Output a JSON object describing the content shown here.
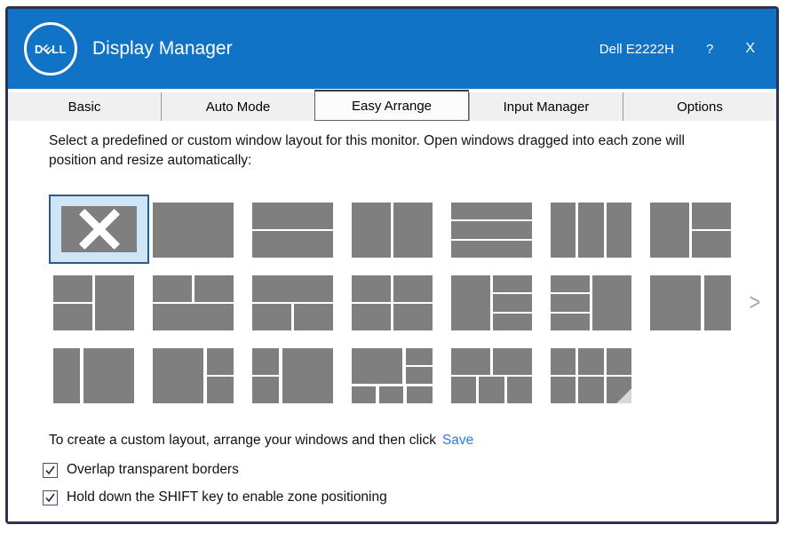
{
  "header": {
    "logo": "DELL",
    "title": "Display Manager",
    "monitor": "Dell E2222H",
    "help": "?",
    "close": "X"
  },
  "tabs": [
    {
      "label": "Basic",
      "selected": false
    },
    {
      "label": "Auto Mode",
      "selected": false
    },
    {
      "label": "Easy Arrange",
      "selected": true
    },
    {
      "label": "Input Manager",
      "selected": false
    },
    {
      "label": "Options",
      "selected": false
    }
  ],
  "easy_arrange": {
    "instruction_line1": "Select a predefined or custom window layout for this monitor.  Open windows dragged into each zone will",
    "instruction_line2": "position and resize automatically:",
    "next_arrow": ">",
    "hint_text": "To create a custom layout, arrange your windows and then click",
    "save_link": "Save",
    "checkboxes": [
      {
        "label": "Overlap transparent borders",
        "checked": true
      },
      {
        "label": "Hold down the SHIFT key to enable zone positioning",
        "checked": true
      }
    ],
    "layout_rows": [
      [
        {
          "name": "custom-current",
          "selected": true,
          "glyph": "X",
          "zones": [
            [
              0,
              0,
              100,
              100
            ]
          ]
        },
        {
          "name": "single-full",
          "zones": [
            [
              0,
              0,
              100,
              100
            ]
          ]
        },
        {
          "name": "two-rows",
          "zones": [
            [
              0,
              0,
              100,
              48.5
            ],
            [
              0,
              51.5,
              100,
              48.5
            ]
          ]
        },
        {
          "name": "two-cols",
          "zones": [
            [
              0,
              0,
              48.5,
              100
            ],
            [
              51.5,
              0,
              48.5,
              100
            ]
          ]
        },
        {
          "name": "three-rows",
          "zones": [
            [
              0,
              0,
              100,
              31
            ],
            [
              0,
              34.5,
              100,
              31
            ],
            [
              0,
              69,
              100,
              31
            ]
          ]
        },
        {
          "name": "three-cols",
          "zones": [
            [
              0,
              0,
              31,
              100
            ],
            [
              34.5,
              0,
              31,
              100
            ],
            [
              69,
              0,
              31,
              100
            ]
          ]
        },
        {
          "name": "half-left-right-stack",
          "zones": [
            [
              0,
              0,
              48.5,
              100
            ],
            [
              51.5,
              0,
              48.5,
              48.5
            ],
            [
              51.5,
              51.5,
              48.5,
              48.5
            ]
          ]
        }
      ],
      [
        {
          "name": "left-stack-half-right",
          "zones": [
            [
              0,
              0,
              48.5,
              48.5
            ],
            [
              0,
              51.5,
              48.5,
              48.5
            ],
            [
              51.5,
              0,
              48.5,
              100
            ]
          ]
        },
        {
          "name": "top-split-bottom-full",
          "zones": [
            [
              0,
              0,
              48.5,
              48.5
            ],
            [
              51.5,
              0,
              48.5,
              48.5
            ],
            [
              0,
              51.5,
              100,
              48.5
            ]
          ]
        },
        {
          "name": "top-full-bottom-split",
          "zones": [
            [
              0,
              0,
              100,
              48.5
            ],
            [
              0,
              51.5,
              48.5,
              48.5
            ],
            [
              51.5,
              51.5,
              48.5,
              48.5
            ]
          ]
        },
        {
          "name": "quad-grid",
          "zones": [
            [
              0,
              0,
              48.5,
              48.5
            ],
            [
              51.5,
              0,
              48.5,
              48.5
            ],
            [
              0,
              51.5,
              48.5,
              48.5
            ],
            [
              51.5,
              51.5,
              48.5,
              48.5
            ]
          ]
        },
        {
          "name": "half-left-right-thirds",
          "zones": [
            [
              0,
              0,
              48.5,
              100
            ],
            [
              51.5,
              0,
              48.5,
              31
            ],
            [
              51.5,
              34.5,
              48.5,
              31
            ],
            [
              51.5,
              69,
              48.5,
              31
            ]
          ]
        },
        {
          "name": "left-thirds-half-right",
          "zones": [
            [
              0,
              0,
              48.5,
              31
            ],
            [
              0,
              34.5,
              48.5,
              31
            ],
            [
              0,
              69,
              48.5,
              31
            ],
            [
              51.5,
              0,
              48.5,
              100
            ]
          ]
        },
        {
          "name": "wide-left-narrow-right",
          "zones": [
            [
              0,
              0,
              63,
              100
            ],
            [
              66.5,
              0,
              33.5,
              100
            ]
          ]
        }
      ],
      [
        {
          "name": "narrow-left-wide-right",
          "zones": [
            [
              0,
              0,
              33.5,
              100
            ],
            [
              37,
              0,
              63,
              100
            ]
          ]
        },
        {
          "name": "wide-left-right-stack",
          "zones": [
            [
              0,
              0,
              63,
              100
            ],
            [
              66.5,
              0,
              33.5,
              48.5
            ],
            [
              66.5,
              51.5,
              33.5,
              48.5
            ]
          ]
        },
        {
          "name": "left-stack-wide-right",
          "zones": [
            [
              0,
              0,
              33.5,
              48.5
            ],
            [
              0,
              51.5,
              33.5,
              48.5
            ],
            [
              37,
              0,
              63,
              100
            ]
          ]
        },
        {
          "name": "big-topleft-six-zone",
          "zones": [
            [
              0,
              0,
              63,
              65
            ],
            [
              67,
              0,
              33,
              30
            ],
            [
              67,
              34,
              33,
              31
            ],
            [
              0,
              69,
              30,
              31
            ],
            [
              34,
              69,
              30,
              31
            ],
            [
              68,
              69,
              32,
              31
            ]
          ]
        },
        {
          "name": "two-top-three-bottom",
          "zones": [
            [
              0,
              0,
              48.5,
              48.5
            ],
            [
              51.5,
              0,
              48.5,
              48.5
            ],
            [
              0,
              51.5,
              31,
              48.5
            ],
            [
              34.5,
              51.5,
              31,
              48.5
            ],
            [
              69,
              51.5,
              31,
              48.5
            ]
          ]
        },
        {
          "name": "grid-3x2",
          "folded": true,
          "zones": [
            [
              0,
              0,
              31,
              48.5
            ],
            [
              34.5,
              0,
              31,
              48.5
            ],
            [
              69,
              0,
              31,
              48.5
            ],
            [
              0,
              51.5,
              31,
              48.5
            ],
            [
              34.5,
              51.5,
              31,
              48.5
            ],
            [
              69,
              51.5,
              31,
              48.5
            ]
          ]
        }
      ]
    ]
  },
  "colors": {
    "titlebar_bg": "#1173C6",
    "window_border": "#2F3150",
    "tile_gray": "#7F7F7F",
    "selected_tile_border": "#2A5B8D",
    "selected_tile_bg": "#CDE5F7",
    "tab_bg": "#F0F0F0",
    "save_link": "#2E7CD6"
  }
}
